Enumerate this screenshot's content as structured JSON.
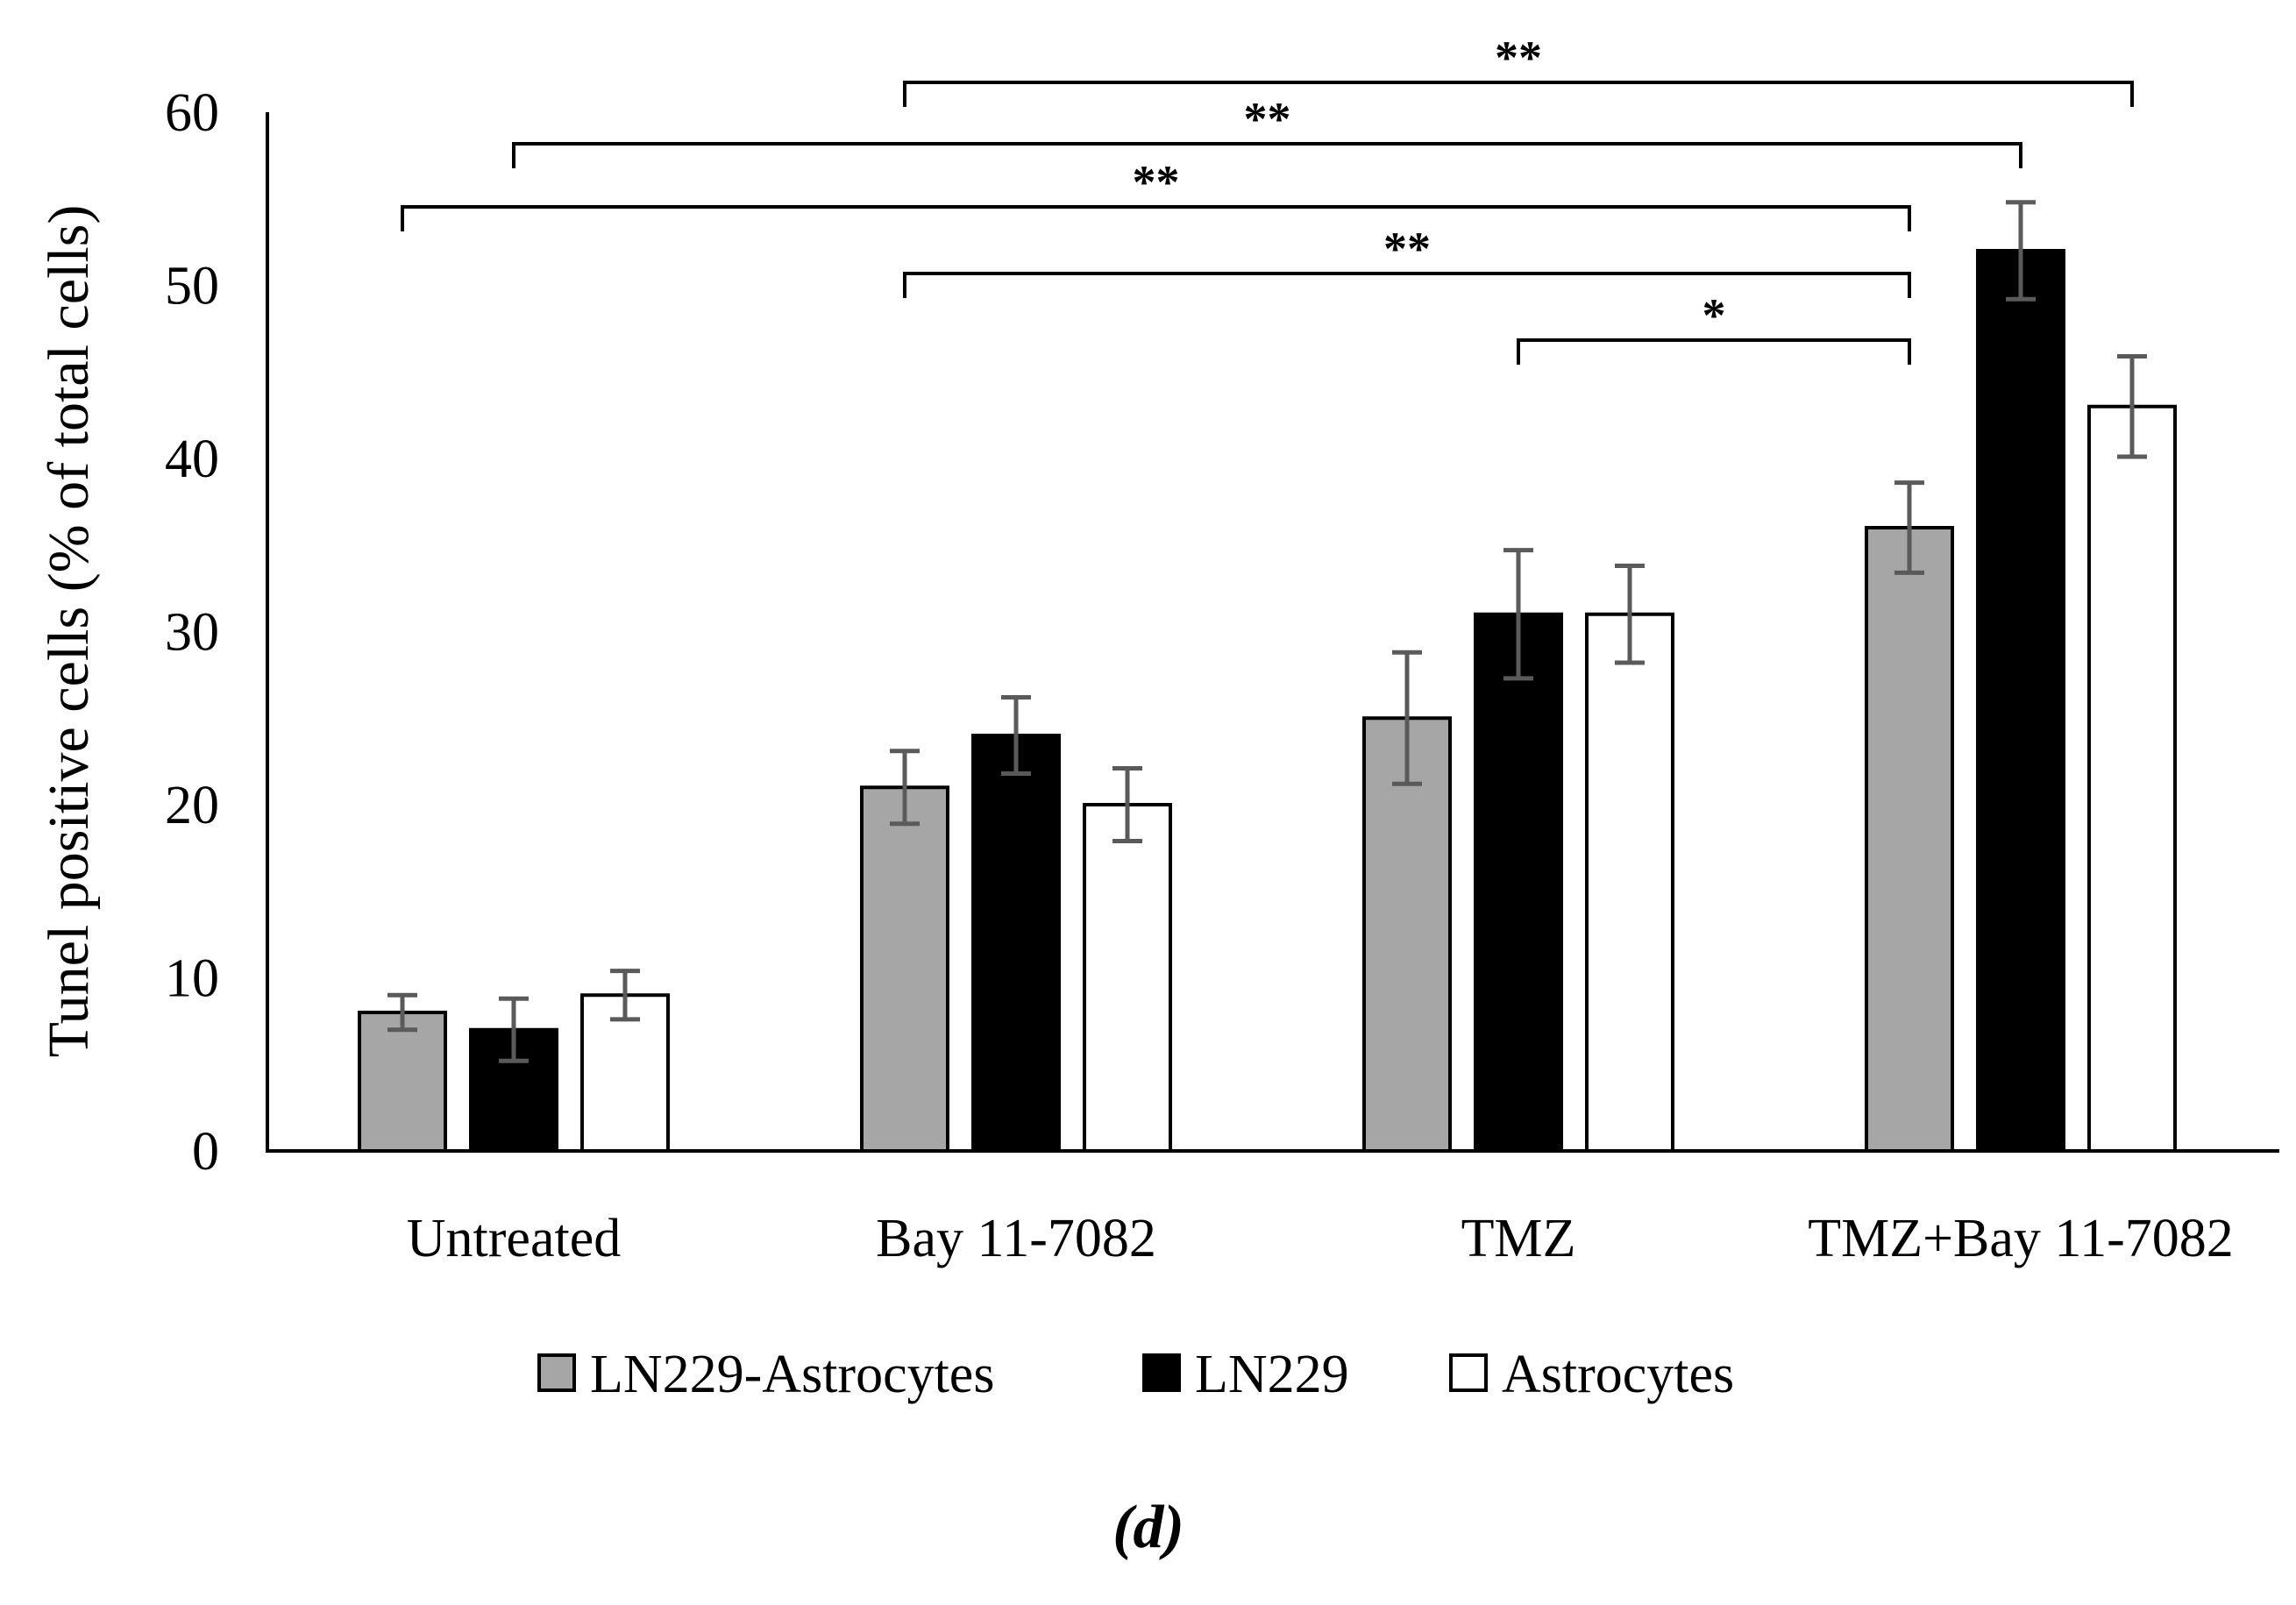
{
  "chart_data": {
    "type": "bar",
    "title": "",
    "xlabel": "",
    "ylabel": "Tunel positive cells (% of total cells)",
    "ylim": [
      0,
      60
    ],
    "yticks": [
      "0",
      "10",
      "20",
      "30",
      "40",
      "50",
      "60"
    ],
    "grid": false,
    "legend_position": "bottom",
    "categories": [
      "Untreated",
      "Bay 11-7082",
      "TMZ",
      "TMZ+Bay 11-7082"
    ],
    "series": [
      {
        "name": "LN229-Astrocytes",
        "color": "#a6a6a6",
        "values": [
          8,
          21,
          25,
          36
        ],
        "errors": [
          1.0,
          2.1,
          3.8,
          2.6
        ]
      },
      {
        "name": "LN229",
        "color": "#000000",
        "values": [
          7,
          24,
          31,
          52
        ],
        "errors": [
          1.8,
          2.2,
          3.7,
          2.8
        ]
      },
      {
        "name": "Astrocytes",
        "color": "#ffffff",
        "values": [
          9,
          20,
          31,
          43
        ],
        "errors": [
          1.4,
          2.1,
          2.8,
          2.9
        ]
      }
    ],
    "significance": [
      {
        "label": "**",
        "from": [
          1,
          0
        ],
        "to": [
          3,
          2
        ],
        "level": 0
      },
      {
        "label": "**",
        "from": [
          0,
          1
        ],
        "to": [
          3,
          1
        ],
        "level": 1
      },
      {
        "label": "**",
        "from": [
          0,
          0
        ],
        "to": [
          3,
          0
        ],
        "level": 2
      },
      {
        "label": "**",
        "from": [
          1,
          0
        ],
        "to": [
          3,
          0
        ],
        "level": 3
      },
      {
        "label": "*",
        "from": [
          2,
          1
        ],
        "to": [
          3,
          0
        ],
        "level": 4
      }
    ],
    "panel_label": "(d)"
  }
}
